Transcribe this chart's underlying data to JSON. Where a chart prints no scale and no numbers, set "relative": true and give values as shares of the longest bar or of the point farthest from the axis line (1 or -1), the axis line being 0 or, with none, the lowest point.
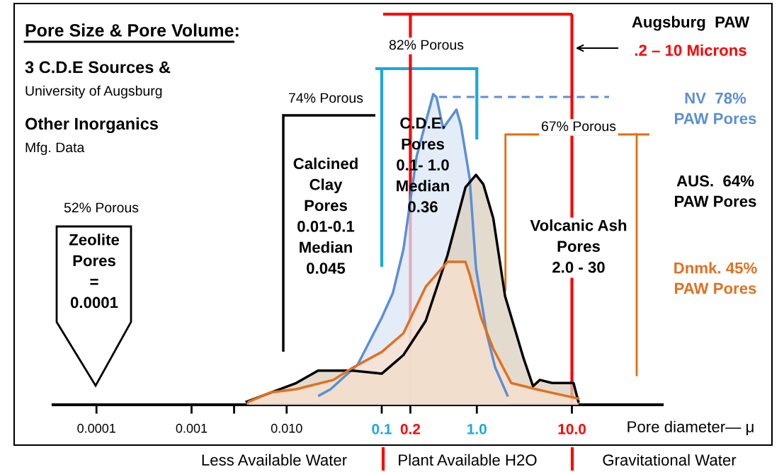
{
  "chart_data": {
    "type": "area",
    "relative": true,
    "title": "Pore Size & Pore Volume:",
    "xlabel": "Pore diameter— μ",
    "log": "x",
    "xlim": [
      3.5e-05,
      89
    ],
    "xticks": [
      {
        "value": 0.0001,
        "label": "0.0001"
      },
      {
        "value": 0.001,
        "label": "0.001"
      },
      {
        "value": 0.0028,
        "label": null
      },
      {
        "value": 0.01,
        "label": "0.010"
      },
      {
        "value": 0.1,
        "label": "0.1"
      },
      {
        "value": 0.2,
        "label": "0.2"
      },
      {
        "value": 1.0,
        "label": "1.0"
      },
      {
        "value": 10,
        "label": "10.0"
      }
    ],
    "grid": false,
    "legend": false,
    "series": [
      {
        "name": "NV  78%\nPAW Pores",
        "color": "#5b8fd6",
        "x": [
          0.022,
          0.029,
          0.056,
          0.1,
          0.131,
          0.169,
          0.233,
          0.348,
          0.377,
          0.442,
          0.61,
          0.68,
          0.84,
          0.98,
          1.27,
          1.56,
          2.1
        ],
        "values": [
          0.03,
          0.05,
          0.13,
          0.28,
          0.36,
          0.5,
          0.8,
          1,
          0.99,
          0.89,
          0.95,
          0.9,
          0.73,
          0.44,
          0.23,
          0.12,
          0.03
        ]
      },
      {
        "name": "AUS.  64%\nPAW Pores",
        "color": "#000000",
        "x": [
          0.0038,
          0.0126,
          0.0214,
          0.049,
          0.1,
          0.169,
          0.29,
          0.49,
          0.76,
          0.98,
          1.17,
          1.49,
          1.98,
          3.1,
          3.9,
          4.6,
          6.2,
          10.4,
          11.7
        ],
        "values": [
          0.01,
          0.07,
          0.11,
          0.11,
          0.1,
          0.16,
          0.27,
          0.48,
          0.7,
          0.74,
          0.71,
          0.6,
          0.35,
          0.15,
          0.06,
          0.08,
          0.07,
          0.07,
          0.01
        ]
      },
      {
        "name": "Dnmk. 45%\nPAW Pores",
        "color": "#e07020",
        "x": [
          0.004,
          0.0068,
          0.0126,
          0.031,
          0.05,
          0.1,
          0.169,
          0.29,
          0.49,
          0.76,
          0.84,
          1.11,
          1.49,
          2.3,
          4.2,
          8.3,
          11.7
        ],
        "values": [
          0.01,
          0.04,
          0.05,
          0.08,
          0.12,
          0.17,
          0.23,
          0.38,
          0.46,
          0.46,
          0.42,
          0.28,
          0.18,
          0.07,
          0.05,
          0.03,
          0.02
        ]
      }
    ],
    "ref_lines": [
      {
        "axis": "x",
        "value": 0.1,
        "label": null,
        "color": "#1aa7e0"
      },
      {
        "axis": "x",
        "value": 1.0,
        "label": null,
        "color": "#1aa7e0"
      },
      {
        "axis": "x",
        "value": 0.2,
        "label": null,
        "color": "#ff0000"
      },
      {
        "axis": "x",
        "value": 10,
        "label": null,
        "color": "#ff0000"
      },
      {
        "axis": "x",
        "value": 2.0,
        "label": null,
        "color": "#e46c0a"
      },
      {
        "axis": "x",
        "value": 48,
        "label": null,
        "color": "#e46c0a"
      }
    ],
    "annotations": [
      "3 C.D.E Sources &",
      "University of Augsburg",
      "Other Inorganics",
      "Mfg. Data",
      "52% Porous",
      "Zeolite\nPores\n=\n0.0001",
      "74% Porous",
      "Calcined\nClay\nPores\n0.01-0.1\nMedian\n0.045",
      "82% Porous",
      "C.D.E.\nPores\n0.1- 1.0\nMedian\n0.36",
      "67% Porous",
      "Volcanic Ash\nPores\n2.0 - 30",
      "Augsburg  PAW",
      ".2 – 10 Microns",
      "Less Available Water",
      "Plant Available H2O",
      "Gravitational Water"
    ]
  }
}
